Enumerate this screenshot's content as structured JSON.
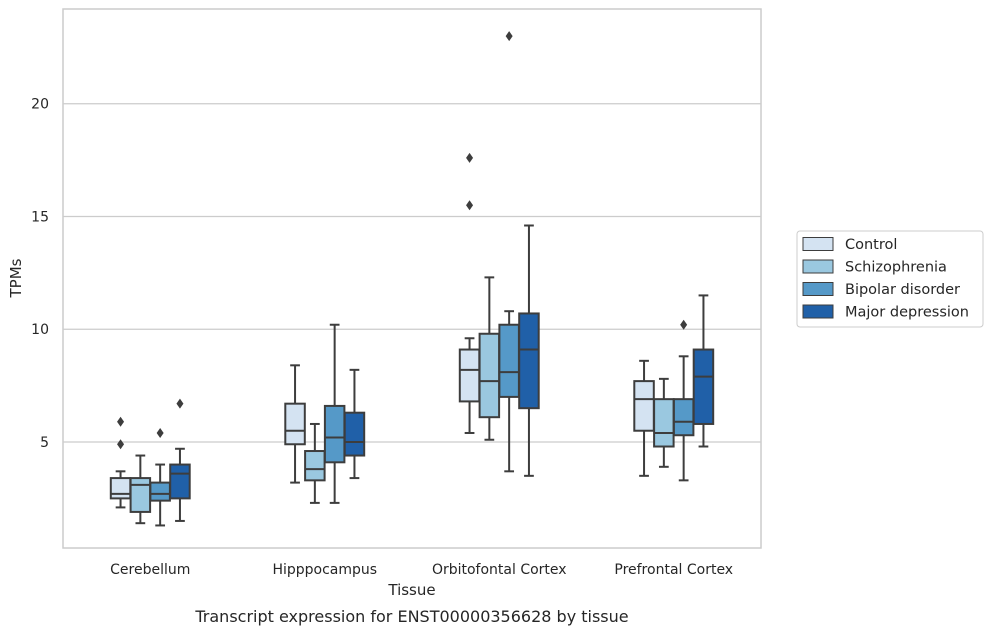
{
  "chart_data": {
    "type": "boxplot",
    "title": "",
    "caption": "Transcript expression for ENST00000356628 by tissue",
    "xlabel": "Tissue",
    "ylabel": "TPMs",
    "ylim": [
      0.3,
      24.2
    ],
    "yticks": [
      5,
      10,
      15,
      20
    ],
    "grid": "horizontal",
    "legend_position": "right",
    "categories": [
      "Cerebellum",
      "Hipppocampus",
      "Orbitofontal Cortex",
      "Prefrontal Cortex"
    ],
    "series": [
      {
        "name": "Control",
        "color": "#d4e3f2",
        "boxes": [
          {
            "whislo": 2.1,
            "q1": 2.5,
            "med": 2.7,
            "q3": 3.4,
            "whishi": 3.7,
            "fliers": [
              4.9,
              5.9
            ]
          },
          {
            "whislo": 3.2,
            "q1": 4.9,
            "med": 5.5,
            "q3": 6.7,
            "whishi": 8.4,
            "fliers": []
          },
          {
            "whislo": 5.4,
            "q1": 6.8,
            "med": 8.2,
            "q3": 9.1,
            "whishi": 9.6,
            "fliers": [
              15.5,
              17.6
            ]
          },
          {
            "whislo": 3.5,
            "q1": 5.5,
            "med": 6.9,
            "q3": 7.7,
            "whishi": 8.6,
            "fliers": []
          }
        ]
      },
      {
        "name": "Schizophrenia",
        "color": "#9ac8e0",
        "boxes": [
          {
            "whislo": 1.4,
            "q1": 1.9,
            "med": 3.1,
            "q3": 3.4,
            "whishi": 4.4,
            "fliers": []
          },
          {
            "whislo": 2.3,
            "q1": 3.3,
            "med": 3.8,
            "q3": 4.6,
            "whishi": 5.8,
            "fliers": []
          },
          {
            "whislo": 5.1,
            "q1": 6.1,
            "med": 7.7,
            "q3": 9.8,
            "whishi": 12.3,
            "fliers": []
          },
          {
            "whislo": 3.9,
            "q1": 4.8,
            "med": 5.4,
            "q3": 6.9,
            "whishi": 7.8,
            "fliers": []
          }
        ]
      },
      {
        "name": "Bipolar disorder",
        "color": "#5599c8",
        "boxes": [
          {
            "whislo": 1.3,
            "q1": 2.4,
            "med": 2.7,
            "q3": 3.2,
            "whishi": 4.0,
            "fliers": [
              5.4
            ]
          },
          {
            "whislo": 2.3,
            "q1": 4.1,
            "med": 5.2,
            "q3": 6.6,
            "whishi": 10.2,
            "fliers": []
          },
          {
            "whislo": 3.7,
            "q1": 7.0,
            "med": 8.1,
            "q3": 10.2,
            "whishi": 10.8,
            "fliers": [
              23.0
            ]
          },
          {
            "whislo": 3.3,
            "q1": 5.3,
            "med": 5.9,
            "q3": 6.9,
            "whishi": 8.8,
            "fliers": [
              10.2
            ]
          }
        ]
      },
      {
        "name": "Major depression",
        "color": "#2060a8",
        "boxes": [
          {
            "whislo": 1.5,
            "q1": 2.5,
            "med": 3.6,
            "q3": 4.0,
            "whishi": 4.7,
            "fliers": [
              6.7
            ]
          },
          {
            "whislo": 3.4,
            "q1": 4.4,
            "med": 5.0,
            "q3": 6.3,
            "whishi": 8.2,
            "fliers": []
          },
          {
            "whislo": 3.5,
            "q1": 6.5,
            "med": 9.1,
            "q3": 10.7,
            "whishi": 14.6,
            "fliers": []
          },
          {
            "whislo": 4.8,
            "q1": 5.8,
            "med": 7.9,
            "q3": 9.1,
            "whishi": 11.5,
            "fliers": []
          }
        ]
      }
    ]
  }
}
